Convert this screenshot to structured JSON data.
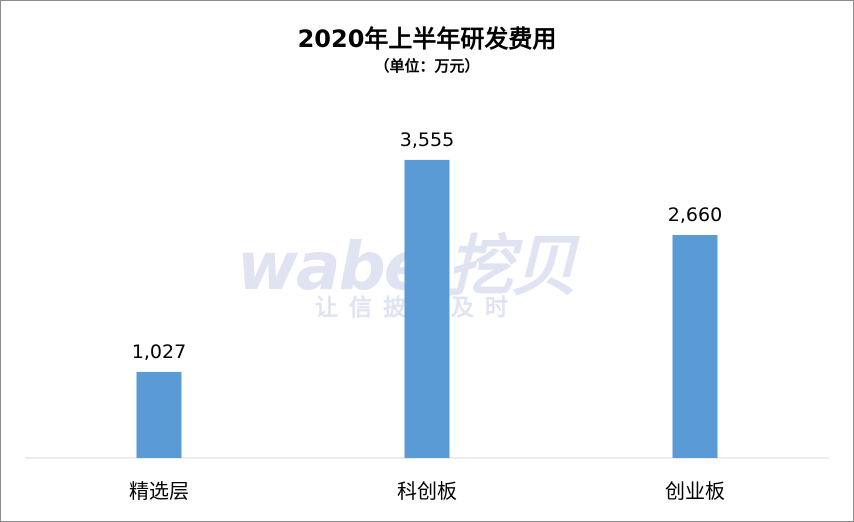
{
  "chart_data": {
    "type": "bar",
    "title": "2020年上半年研发费用",
    "subtitle": "（单位：万元）",
    "categories": [
      "精选层",
      "科创板",
      "创业板"
    ],
    "values": [
      1027,
      3555,
      2660
    ],
    "value_labels": [
      "1,027",
      "3,555",
      "2,660"
    ],
    "ylim": [
      0,
      3900
    ],
    "grid": false,
    "legend": "none",
    "colors": {
      "bar": "#5b9bd5",
      "axis": "#d9d9d9",
      "text": "#000000"
    }
  },
  "watermark": {
    "logo": "wabei挖贝",
    "slogan": "让信披更及时"
  }
}
